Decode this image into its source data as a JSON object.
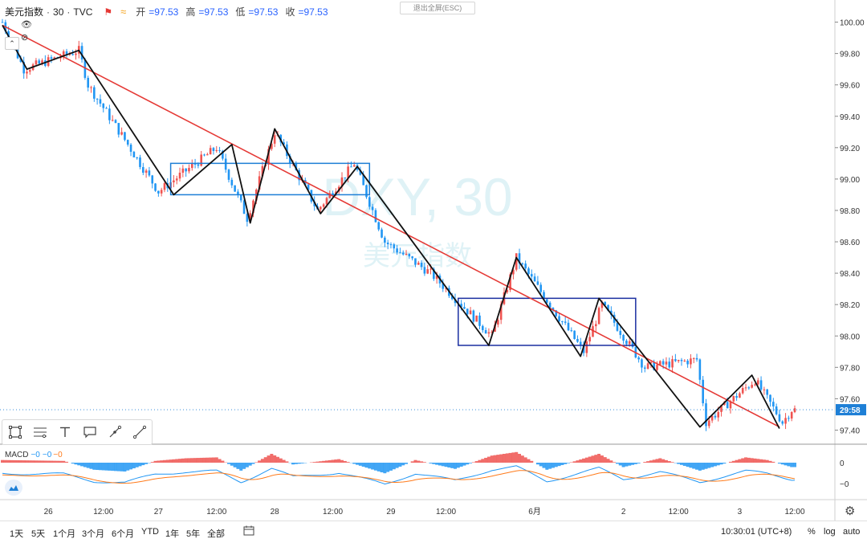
{
  "header": {
    "symbol": "美元指数",
    "interval": "30",
    "source": "TVC",
    "open_label": "开",
    "open_value": "=97.53",
    "high_label": "高",
    "high_value": "=97.53",
    "low_label": "低",
    "low_value": "=97.53",
    "close_label": "收",
    "close_value": "=97.53",
    "exit_fullscreen": "退出全屏(ESC)"
  },
  "watermark": {
    "line1": "DXY, 30",
    "line2": "美元指数"
  },
  "colors": {
    "up": "#ef5350",
    "down": "#2196f3",
    "trendline": "#e53935",
    "zigzag": "#111111",
    "box1": "#1e7fd6",
    "box2": "#1a2ea0",
    "macd_line": "#2196f3",
    "signal_line": "#ff7a1a",
    "price_tag": "#1e7fd6"
  },
  "chart_data": {
    "type": "candlestick",
    "symbol": "DXY",
    "interval": "30",
    "price_axis": {
      "min": 97.3,
      "max": 100.1,
      "ticks": [
        "100.00",
        "99.80",
        "99.60",
        "99.40",
        "99.20",
        "99.00",
        "98.80",
        "98.60",
        "98.40",
        "98.20",
        "98.00",
        "97.80",
        "97.60",
        "97.40"
      ]
    },
    "time_axis": {
      "bars": 260,
      "labels": [
        {
          "text": "26",
          "bar": 15
        },
        {
          "text": "12:00",
          "bar": 33
        },
        {
          "text": "27",
          "bar": 51
        },
        {
          "text": "12:00",
          "bar": 70
        },
        {
          "text": "28",
          "bar": 89
        },
        {
          "text": "12:00",
          "bar": 108
        },
        {
          "text": "29",
          "bar": 127
        },
        {
          "text": "12:00",
          "bar": 145
        },
        {
          "text": "6月",
          "bar": 174
        },
        {
          "text": "2",
          "bar": 203
        },
        {
          "text": "12:00",
          "bar": 221
        },
        {
          "text": "3",
          "bar": 241
        },
        {
          "text": "12:00",
          "bar": 259
        }
      ]
    },
    "price_path": [
      [
        0,
        100.0
      ],
      [
        7,
        99.7
      ],
      [
        25,
        99.82
      ],
      [
        28,
        99.6
      ],
      [
        40,
        99.25
      ],
      [
        51,
        98.92
      ],
      [
        70,
        99.2
      ],
      [
        80,
        98.75
      ],
      [
        89,
        99.3
      ],
      [
        103,
        98.8
      ],
      [
        115,
        99.1
      ],
      [
        125,
        98.6
      ],
      [
        140,
        98.4
      ],
      [
        160,
        98.0
      ],
      [
        168,
        98.5
      ],
      [
        190,
        97.9
      ],
      [
        196,
        98.2
      ],
      [
        210,
        97.8
      ],
      [
        227,
        97.85
      ],
      [
        230,
        97.45
      ],
      [
        246,
        97.72
      ],
      [
        255,
        97.45
      ],
      [
        258,
        97.53
      ]
    ],
    "last_price": 97.53,
    "price_tag": "29:58",
    "zigzag": [
      [
        0,
        99.98
      ],
      [
        8,
        99.7
      ],
      [
        25,
        99.82
      ],
      [
        56,
        98.9
      ],
      [
        75,
        99.22
      ],
      [
        81,
        98.72
      ],
      [
        89,
        99.32
      ],
      [
        104,
        98.78
      ],
      [
        116,
        99.08
      ],
      [
        159,
        97.94
      ],
      [
        168,
        98.5
      ],
      [
        189,
        97.87
      ],
      [
        195,
        98.24
      ],
      [
        228,
        97.42
      ],
      [
        245,
        97.75
      ],
      [
        254,
        97.41
      ]
    ],
    "trendline": [
      [
        0,
        99.98
      ],
      [
        254,
        97.42
      ]
    ],
    "boxes": [
      {
        "x1": 55,
        "x2": 120,
        "y1": 98.9,
        "y2": 99.1
      },
      {
        "x1": 149,
        "x2": 207,
        "y1": 97.94,
        "y2": 98.24
      }
    ],
    "macd": {
      "label": "MACD",
      "value_macd": "−0",
      "value_signal": "−0",
      "value_hist": "−0",
      "ticks": [
        "0",
        "−0"
      ],
      "hist_path": [
        [
          0,
          0.3
        ],
        [
          20,
          0.2
        ],
        [
          30,
          -0.8
        ],
        [
          40,
          -1.0
        ],
        [
          50,
          0.2
        ],
        [
          60,
          0.5
        ],
        [
          70,
          0.6
        ],
        [
          78,
          -0.9
        ],
        [
          88,
          1.0
        ],
        [
          95,
          -0.2
        ],
        [
          110,
          0.4
        ],
        [
          125,
          -1.2
        ],
        [
          135,
          0.3
        ],
        [
          148,
          -0.7
        ],
        [
          160,
          0.8
        ],
        [
          168,
          1.2
        ],
        [
          178,
          -0.8
        ],
        [
          195,
          1.0
        ],
        [
          203,
          -0.5
        ],
        [
          215,
          0.5
        ],
        [
          228,
          -0.9
        ],
        [
          243,
          0.6
        ],
        [
          250,
          0.3
        ],
        [
          258,
          -0.5
        ]
      ]
    }
  },
  "toolbar": {
    "tools": [
      "rectangle-tool",
      "fib-tool",
      "text-tool",
      "callout-tool",
      "brush-tool",
      "line-tool"
    ]
  },
  "bottom": {
    "timeframes": [
      "1天",
      "5天",
      "1个月",
      "3个月",
      "6个月",
      "YTD",
      "1年",
      "5年",
      "全部"
    ],
    "clock": "10:30:01 (UTC+8)",
    "percent": "%",
    "log": "log",
    "auto": "auto"
  }
}
